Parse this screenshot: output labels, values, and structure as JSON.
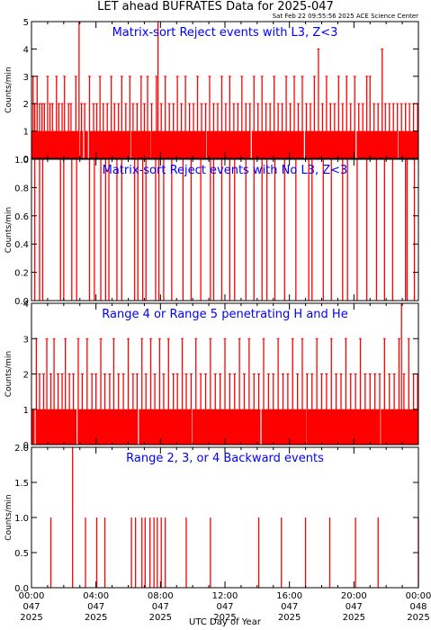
{
  "page": {
    "title": "LET ahead BUFRATES Data for 2025-047",
    "subtitle": "Sat Feb 22 09:55:56 2025 ACE Science Center",
    "xlabel": "UTC Day of Year"
  },
  "colors": {
    "data": "#ff0000",
    "panel_title": "#0000ff",
    "axes": "#000000",
    "background": "#ffffff"
  },
  "x_ticks": [
    {
      "hours": 0,
      "time": "00:00",
      "doy": "047",
      "year": "2025"
    },
    {
      "hours": 4,
      "time": "04:00",
      "doy": "047",
      "year": "2025"
    },
    {
      "hours": 8,
      "time": "08:00",
      "doy": "047",
      "year": "2025"
    },
    {
      "hours": 12,
      "time": "12:00",
      "doy": "047",
      "year": "2025"
    },
    {
      "hours": 16,
      "time": "16:00",
      "doy": "047",
      "year": "2025"
    },
    {
      "hours": 20,
      "time": "20:00",
      "doy": "047",
      "year": "2025"
    },
    {
      "hours": 24,
      "time": "00:00",
      "doy": "048",
      "year": "2025"
    }
  ],
  "chart_data": [
    {
      "type": "bar",
      "title": "Matrix-sort Reject events with L3, Z<3",
      "ylabel": "Counts/min",
      "xlabel": "UTC Day of Year",
      "xlim": [
        0,
        24
      ],
      "ylim": [
        0,
        5
      ],
      "yticks": [
        "0",
        "1",
        "2",
        "3",
        "4",
        "5"
      ],
      "grid": false,
      "note": "per-minute counts; baseline about 1 count/min with sporadic 2-3 spikes",
      "baseline": 1,
      "baseline_gaps_hours": [
        2.95,
        3.2,
        3.5,
        6.1,
        7.4,
        10.8,
        13.6,
        16.9,
        20.1,
        22.7
      ],
      "spikes": [
        {
          "x": 0.1,
          "y": 3
        },
        {
          "x": 0.2,
          "y": 2
        },
        {
          "x": 0.35,
          "y": 3
        },
        {
          "x": 0.5,
          "y": 2
        },
        {
          "x": 0.65,
          "y": 2
        },
        {
          "x": 0.8,
          "y": 2
        },
        {
          "x": 1.0,
          "y": 3
        },
        {
          "x": 1.15,
          "y": 2
        },
        {
          "x": 1.3,
          "y": 2
        },
        {
          "x": 1.55,
          "y": 3
        },
        {
          "x": 1.7,
          "y": 2
        },
        {
          "x": 1.9,
          "y": 2
        },
        {
          "x": 2.05,
          "y": 3
        },
        {
          "x": 2.3,
          "y": 2
        },
        {
          "x": 2.45,
          "y": 2
        },
        {
          "x": 2.75,
          "y": 3
        },
        {
          "x": 2.95,
          "y": 5
        },
        {
          "x": 3.1,
          "y": 2
        },
        {
          "x": 3.3,
          "y": 2
        },
        {
          "x": 3.6,
          "y": 3
        },
        {
          "x": 3.85,
          "y": 2
        },
        {
          "x": 4.05,
          "y": 2
        },
        {
          "x": 4.25,
          "y": 3
        },
        {
          "x": 4.45,
          "y": 2
        },
        {
          "x": 4.7,
          "y": 2
        },
        {
          "x": 4.95,
          "y": 3
        },
        {
          "x": 5.15,
          "y": 2
        },
        {
          "x": 5.4,
          "y": 2
        },
        {
          "x": 5.6,
          "y": 3
        },
        {
          "x": 5.85,
          "y": 2
        },
        {
          "x": 6.1,
          "y": 3
        },
        {
          "x": 6.3,
          "y": 2
        },
        {
          "x": 6.55,
          "y": 2
        },
        {
          "x": 6.8,
          "y": 3
        },
        {
          "x": 7.0,
          "y": 2
        },
        {
          "x": 7.2,
          "y": 3
        },
        {
          "x": 7.45,
          "y": 2
        },
        {
          "x": 7.75,
          "y": 3
        },
        {
          "x": 7.85,
          "y": 5
        },
        {
          "x": 8.05,
          "y": 2
        },
        {
          "x": 8.3,
          "y": 3
        },
        {
          "x": 8.55,
          "y": 2
        },
        {
          "x": 8.8,
          "y": 2
        },
        {
          "x": 9.05,
          "y": 3
        },
        {
          "x": 9.3,
          "y": 2
        },
        {
          "x": 9.55,
          "y": 3
        },
        {
          "x": 9.8,
          "y": 2
        },
        {
          "x": 10.05,
          "y": 2
        },
        {
          "x": 10.3,
          "y": 3
        },
        {
          "x": 10.55,
          "y": 2
        },
        {
          "x": 10.8,
          "y": 2
        },
        {
          "x": 11.05,
          "y": 3
        },
        {
          "x": 11.3,
          "y": 2
        },
        {
          "x": 11.55,
          "y": 2
        },
        {
          "x": 11.8,
          "y": 3
        },
        {
          "x": 12.05,
          "y": 2
        },
        {
          "x": 12.3,
          "y": 3
        },
        {
          "x": 12.55,
          "y": 2
        },
        {
          "x": 12.8,
          "y": 2
        },
        {
          "x": 13.05,
          "y": 3
        },
        {
          "x": 13.3,
          "y": 2
        },
        {
          "x": 13.55,
          "y": 2
        },
        {
          "x": 13.8,
          "y": 3
        },
        {
          "x": 14.05,
          "y": 2
        },
        {
          "x": 14.3,
          "y": 3
        },
        {
          "x": 14.55,
          "y": 2
        },
        {
          "x": 14.8,
          "y": 2
        },
        {
          "x": 15.05,
          "y": 3
        },
        {
          "x": 15.3,
          "y": 2
        },
        {
          "x": 15.55,
          "y": 2
        },
        {
          "x": 15.8,
          "y": 3
        },
        {
          "x": 16.05,
          "y": 2
        },
        {
          "x": 16.3,
          "y": 3
        },
        {
          "x": 16.55,
          "y": 2
        },
        {
          "x": 16.8,
          "y": 3
        },
        {
          "x": 17.05,
          "y": 2
        },
        {
          "x": 17.3,
          "y": 2
        },
        {
          "x": 17.55,
          "y": 3
        },
        {
          "x": 17.8,
          "y": 4
        },
        {
          "x": 18.05,
          "y": 2
        },
        {
          "x": 18.3,
          "y": 3
        },
        {
          "x": 18.55,
          "y": 2
        },
        {
          "x": 18.8,
          "y": 2
        },
        {
          "x": 19.05,
          "y": 3
        },
        {
          "x": 19.3,
          "y": 2
        },
        {
          "x": 19.55,
          "y": 3
        },
        {
          "x": 19.8,
          "y": 2
        },
        {
          "x": 20.05,
          "y": 3
        },
        {
          "x": 20.3,
          "y": 2
        },
        {
          "x": 20.55,
          "y": 2
        },
        {
          "x": 20.8,
          "y": 3
        },
        {
          "x": 21.0,
          "y": 3
        },
        {
          "x": 21.25,
          "y": 2
        },
        {
          "x": 21.5,
          "y": 2
        },
        {
          "x": 21.75,
          "y": 4
        },
        {
          "x": 21.95,
          "y": 2
        },
        {
          "x": 22.2,
          "y": 2
        },
        {
          "x": 22.45,
          "y": 2
        },
        {
          "x": 22.7,
          "y": 2
        },
        {
          "x": 22.95,
          "y": 2
        },
        {
          "x": 23.2,
          "y": 2
        },
        {
          "x": 23.45,
          "y": 2
        },
        {
          "x": 23.7,
          "y": 2
        },
        {
          "x": 23.95,
          "y": 2
        }
      ]
    },
    {
      "type": "bar",
      "title": "Matrix-sort Reject events with No L3, Z<3",
      "ylabel": "Counts/min",
      "xlabel": "UTC Day of Year",
      "xlim": [
        0,
        24
      ],
      "ylim": [
        0,
        1
      ],
      "yticks": [
        "0.0",
        "0.2",
        "0.4",
        "0.6",
        "0.8",
        "1.0"
      ],
      "grid": false,
      "spikes": [
        {
          "x": 0.2,
          "y": 1
        },
        {
          "x": 0.5,
          "y": 1
        },
        {
          "x": 0.7,
          "y": 1
        },
        {
          "x": 1.8,
          "y": 1
        },
        {
          "x": 2.0,
          "y": 1
        },
        {
          "x": 2.5,
          "y": 1
        },
        {
          "x": 2.8,
          "y": 1
        },
        {
          "x": 3.6,
          "y": 1
        },
        {
          "x": 3.9,
          "y": 1
        },
        {
          "x": 4.3,
          "y": 1
        },
        {
          "x": 4.6,
          "y": 1
        },
        {
          "x": 4.8,
          "y": 1
        },
        {
          "x": 5.3,
          "y": 1
        },
        {
          "x": 5.6,
          "y": 1
        },
        {
          "x": 6.4,
          "y": 1
        },
        {
          "x": 6.6,
          "y": 1
        },
        {
          "x": 6.9,
          "y": 1
        },
        {
          "x": 7.1,
          "y": 1
        },
        {
          "x": 7.7,
          "y": 1
        },
        {
          "x": 7.9,
          "y": 1
        },
        {
          "x": 8.2,
          "y": 1
        },
        {
          "x": 8.7,
          "y": 1
        },
        {
          "x": 9.4,
          "y": 1
        },
        {
          "x": 9.9,
          "y": 1
        },
        {
          "x": 10.5,
          "y": 1
        },
        {
          "x": 11.1,
          "y": 1
        },
        {
          "x": 11.3,
          "y": 1
        },
        {
          "x": 11.8,
          "y": 1
        },
        {
          "x": 12.3,
          "y": 1
        },
        {
          "x": 12.6,
          "y": 1
        },
        {
          "x": 13.3,
          "y": 1
        },
        {
          "x": 13.8,
          "y": 1
        },
        {
          "x": 14.3,
          "y": 1
        },
        {
          "x": 14.6,
          "y": 1
        },
        {
          "x": 15.1,
          "y": 1
        },
        {
          "x": 15.7,
          "y": 1
        },
        {
          "x": 16.4,
          "y": 1
        },
        {
          "x": 17.2,
          "y": 1
        },
        {
          "x": 17.4,
          "y": 1
        },
        {
          "x": 18.1,
          "y": 1
        },
        {
          "x": 18.6,
          "y": 1
        },
        {
          "x": 19.3,
          "y": 1
        },
        {
          "x": 19.6,
          "y": 1
        },
        {
          "x": 20.2,
          "y": 1
        },
        {
          "x": 20.8,
          "y": 1
        },
        {
          "x": 21.4,
          "y": 1
        },
        {
          "x": 21.9,
          "y": 1
        },
        {
          "x": 22.4,
          "y": 1
        },
        {
          "x": 23.2,
          "y": 1
        },
        {
          "x": 23.3,
          "y": 1
        },
        {
          "x": 23.75,
          "y": 1
        }
      ]
    },
    {
      "type": "bar",
      "title": "Range 4 or Range 5 penetrating H and He",
      "ylabel": "Counts/min",
      "xlabel": "UTC Day of Year",
      "xlim": [
        0,
        24
      ],
      "ylim": [
        0,
        4
      ],
      "yticks": [
        "0",
        "1",
        "2",
        "3",
        "4"
      ],
      "grid": false,
      "baseline": 1,
      "baseline_gaps_hours": [
        0.2,
        2.8,
        6.6,
        9.9,
        14.2,
        17.05,
        21.6
      ],
      "spikes": [
        {
          "x": 0.3,
          "y": 3
        },
        {
          "x": 0.5,
          "y": 2
        },
        {
          "x": 0.75,
          "y": 2
        },
        {
          "x": 0.95,
          "y": 3
        },
        {
          "x": 1.2,
          "y": 2
        },
        {
          "x": 1.4,
          "y": 3
        },
        {
          "x": 1.65,
          "y": 2
        },
        {
          "x": 1.9,
          "y": 2
        },
        {
          "x": 2.1,
          "y": 3
        },
        {
          "x": 2.35,
          "y": 2
        },
        {
          "x": 2.6,
          "y": 2
        },
        {
          "x": 2.9,
          "y": 3
        },
        {
          "x": 3.15,
          "y": 2
        },
        {
          "x": 3.45,
          "y": 3
        },
        {
          "x": 3.75,
          "y": 2
        },
        {
          "x": 4.0,
          "y": 2
        },
        {
          "x": 4.3,
          "y": 3
        },
        {
          "x": 4.55,
          "y": 2
        },
        {
          "x": 4.85,
          "y": 2
        },
        {
          "x": 5.1,
          "y": 3
        },
        {
          "x": 5.4,
          "y": 2
        },
        {
          "x": 5.7,
          "y": 2
        },
        {
          "x": 6.0,
          "y": 3
        },
        {
          "x": 6.3,
          "y": 2
        },
        {
          "x": 6.55,
          "y": 2
        },
        {
          "x": 6.85,
          "y": 3
        },
        {
          "x": 7.1,
          "y": 2
        },
        {
          "x": 7.4,
          "y": 3
        },
        {
          "x": 7.65,
          "y": 2
        },
        {
          "x": 7.95,
          "y": 3
        },
        {
          "x": 8.2,
          "y": 2
        },
        {
          "x": 8.5,
          "y": 3
        },
        {
          "x": 8.8,
          "y": 2
        },
        {
          "x": 9.05,
          "y": 2
        },
        {
          "x": 9.35,
          "y": 3
        },
        {
          "x": 9.6,
          "y": 2
        },
        {
          "x": 9.9,
          "y": 2
        },
        {
          "x": 10.2,
          "y": 3
        },
        {
          "x": 10.5,
          "y": 2
        },
        {
          "x": 10.8,
          "y": 2
        },
        {
          "x": 11.1,
          "y": 3
        },
        {
          "x": 11.4,
          "y": 2
        },
        {
          "x": 11.7,
          "y": 2
        },
        {
          "x": 12.0,
          "y": 3
        },
        {
          "x": 12.3,
          "y": 2
        },
        {
          "x": 12.6,
          "y": 2
        },
        {
          "x": 12.9,
          "y": 3
        },
        {
          "x": 13.2,
          "y": 2
        },
        {
          "x": 13.5,
          "y": 3
        },
        {
          "x": 13.8,
          "y": 2
        },
        {
          "x": 14.1,
          "y": 2
        },
        {
          "x": 14.4,
          "y": 3
        },
        {
          "x": 14.7,
          "y": 2
        },
        {
          "x": 15.0,
          "y": 2
        },
        {
          "x": 15.3,
          "y": 3
        },
        {
          "x": 15.6,
          "y": 2
        },
        {
          "x": 15.9,
          "y": 2
        },
        {
          "x": 16.2,
          "y": 3
        },
        {
          "x": 16.5,
          "y": 2
        },
        {
          "x": 16.8,
          "y": 3
        },
        {
          "x": 17.1,
          "y": 2
        },
        {
          "x": 17.4,
          "y": 2
        },
        {
          "x": 17.7,
          "y": 3
        },
        {
          "x": 18.0,
          "y": 2
        },
        {
          "x": 18.3,
          "y": 2
        },
        {
          "x": 18.6,
          "y": 3
        },
        {
          "x": 18.9,
          "y": 2
        },
        {
          "x": 19.2,
          "y": 2
        },
        {
          "x": 19.5,
          "y": 3
        },
        {
          "x": 19.8,
          "y": 2
        },
        {
          "x": 20.1,
          "y": 2
        },
        {
          "x": 20.4,
          "y": 3
        },
        {
          "x": 20.7,
          "y": 2
        },
        {
          "x": 21.0,
          "y": 2
        },
        {
          "x": 21.3,
          "y": 2
        },
        {
          "x": 21.6,
          "y": 2
        },
        {
          "x": 21.9,
          "y": 3
        },
        {
          "x": 22.2,
          "y": 2
        },
        {
          "x": 22.5,
          "y": 2
        },
        {
          "x": 22.8,
          "y": 3
        },
        {
          "x": 22.95,
          "y": 4
        },
        {
          "x": 23.1,
          "y": 2
        },
        {
          "x": 23.4,
          "y": 3
        },
        {
          "x": 23.7,
          "y": 2
        },
        {
          "x": 23.95,
          "y": 2
        }
      ]
    },
    {
      "type": "bar",
      "title": "Range 2, 3, or 4 Backward events",
      "ylabel": "Counts/min",
      "xlabel": "UTC Day of Year",
      "xlim": [
        0,
        24
      ],
      "ylim": [
        0,
        2
      ],
      "yticks": [
        "0.0",
        "0.5",
        "1.0",
        "1.5",
        "2.0"
      ],
      "grid": false,
      "spikes": [
        {
          "x": 1.2,
          "y": 1
        },
        {
          "x": 2.55,
          "y": 2
        },
        {
          "x": 3.35,
          "y": 1
        },
        {
          "x": 4.05,
          "y": 1
        },
        {
          "x": 4.55,
          "y": 1
        },
        {
          "x": 6.2,
          "y": 1
        },
        {
          "x": 6.45,
          "y": 1
        },
        {
          "x": 6.85,
          "y": 1
        },
        {
          "x": 7.05,
          "y": 1
        },
        {
          "x": 7.35,
          "y": 1
        },
        {
          "x": 7.6,
          "y": 1
        },
        {
          "x": 7.8,
          "y": 1
        },
        {
          "x": 8.05,
          "y": 1
        },
        {
          "x": 8.3,
          "y": 1
        },
        {
          "x": 9.6,
          "y": 1
        },
        {
          "x": 11.1,
          "y": 1
        },
        {
          "x": 14.1,
          "y": 1
        },
        {
          "x": 15.5,
          "y": 1
        },
        {
          "x": 17.0,
          "y": 1
        },
        {
          "x": 18.5,
          "y": 1
        },
        {
          "x": 20.1,
          "y": 1
        },
        {
          "x": 21.5,
          "y": 1
        },
        {
          "x": 24.0,
          "y": 1
        }
      ]
    }
  ]
}
